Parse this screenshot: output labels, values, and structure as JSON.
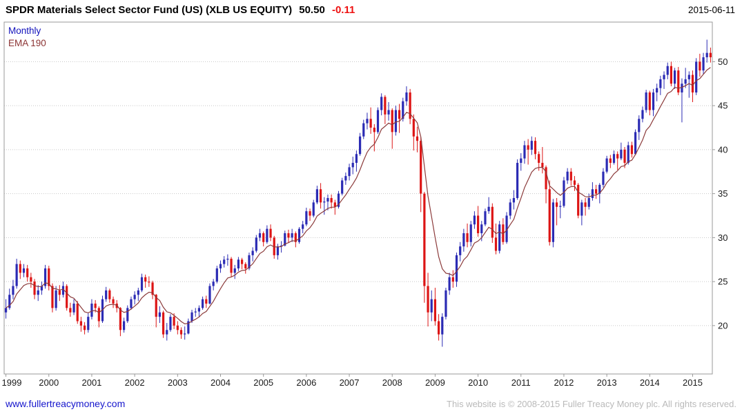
{
  "header": {
    "title": "SPDR Materials Select Sector Fund (US) (XLB US EQUITY)",
    "price": "50.50",
    "change": "-0.11",
    "date": "2015-06-11"
  },
  "legend": {
    "timeframe": "Monthly",
    "ema": "EMA 190"
  },
  "footer": {
    "link": "www.fullertreacymoney.com",
    "copyright": "This website is © 2008-2015 Fuller Treacy Money plc. All rights reserved."
  },
  "chart_data": {
    "type": "candlestick",
    "title": "SPDR Materials Select Sector Fund (US) (XLB US EQUITY)",
    "symbol": "XLB",
    "timeframe": "Monthly",
    "last_price": 50.5,
    "change": -0.11,
    "ema_period_days": 190,
    "y_ticks": [
      20,
      25,
      30,
      35,
      40,
      45,
      50
    ],
    "ylim": [
      14.5,
      54.5
    ],
    "x_year_labels": [
      "1999",
      "2000",
      "2001",
      "2002",
      "2003",
      "2004",
      "2005",
      "2006",
      "2007",
      "2008",
      "2009",
      "2010",
      "2011",
      "2012",
      "2013",
      "2014",
      "2015"
    ],
    "legend_position": "top-left",
    "grid": "horizontal-dotted",
    "colors": {
      "up": "#2b2bb4",
      "down": "#dd1515",
      "ema": "#8b3a3a",
      "grid": "#c6c6c6",
      "border": "#9a9a9a",
      "axis_text": "#1a1a1a"
    },
    "ohlc": [
      [
        "1999-01",
        21.5,
        23.0,
        20.8,
        22.0
      ],
      [
        "1999-02",
        22.0,
        24.2,
        21.8,
        23.5
      ],
      [
        "1999-03",
        23.5,
        25.2,
        23.0,
        24.5
      ],
      [
        "1999-04",
        24.5,
        27.6,
        24.2,
        27.0
      ],
      [
        "1999-05",
        27.0,
        27.4,
        25.3,
        26.0
      ],
      [
        "1999-06",
        26.0,
        27.0,
        25.5,
        26.5
      ],
      [
        "1999-07",
        26.5,
        26.9,
        25.0,
        25.5
      ],
      [
        "1999-08",
        25.5,
        26.0,
        24.3,
        25.0
      ],
      [
        "1999-09",
        25.0,
        25.3,
        23.0,
        23.5
      ],
      [
        "1999-10",
        23.5,
        24.6,
        22.8,
        24.0
      ],
      [
        "1999-11",
        24.0,
        25.0,
        23.5,
        24.5
      ],
      [
        "1999-12",
        24.5,
        26.9,
        24.2,
        26.5
      ],
      [
        "2000-01",
        26.5,
        26.8,
        24.0,
        24.5
      ],
      [
        "2000-02",
        24.5,
        24.8,
        21.5,
        22.0
      ],
      [
        "2000-03",
        22.0,
        24.5,
        21.7,
        24.0
      ],
      [
        "2000-04",
        24.0,
        24.6,
        22.8,
        23.5
      ],
      [
        "2000-05",
        23.5,
        25.0,
        23.2,
        24.5
      ],
      [
        "2000-06",
        24.5,
        24.7,
        21.7,
        22.0
      ],
      [
        "2000-07",
        22.0,
        22.6,
        21.0,
        21.5
      ],
      [
        "2000-08",
        21.5,
        23.0,
        21.2,
        22.5
      ],
      [
        "2000-09",
        22.5,
        22.8,
        20.2,
        20.5
      ],
      [
        "2000-10",
        20.5,
        21.0,
        19.3,
        20.0
      ],
      [
        "2000-11",
        20.0,
        20.4,
        19.0,
        19.5
      ],
      [
        "2000-12",
        19.5,
        21.4,
        19.2,
        21.0
      ],
      [
        "2001-01",
        21.0,
        23.0,
        20.7,
        22.5
      ],
      [
        "2001-02",
        22.5,
        22.9,
        21.5,
        22.0
      ],
      [
        "2001-03",
        22.0,
        22.2,
        19.8,
        20.5
      ],
      [
        "2001-04",
        20.5,
        23.4,
        20.3,
        23.0
      ],
      [
        "2001-05",
        23.0,
        24.4,
        22.7,
        24.0
      ],
      [
        "2001-06",
        24.0,
        24.2,
        22.6,
        23.0
      ],
      [
        "2001-07",
        23.0,
        23.3,
        22.0,
        22.5
      ],
      [
        "2001-08",
        22.5,
        22.9,
        21.5,
        22.0
      ],
      [
        "2001-09",
        22.0,
        22.1,
        18.8,
        19.5
      ],
      [
        "2001-10",
        19.5,
        20.9,
        19.2,
        20.5
      ],
      [
        "2001-11",
        20.5,
        22.3,
        20.3,
        22.0
      ],
      [
        "2001-12",
        22.0,
        23.3,
        21.8,
        23.0
      ],
      [
        "2002-01",
        23.0,
        23.9,
        22.4,
        23.5
      ],
      [
        "2002-02",
        23.5,
        24.3,
        22.8,
        24.0
      ],
      [
        "2002-03",
        24.0,
        25.9,
        23.8,
        25.5
      ],
      [
        "2002-04",
        25.5,
        25.8,
        24.3,
        25.0
      ],
      [
        "2002-05",
        25.0,
        25.6,
        24.4,
        24.9
      ],
      [
        "2002-06",
        24.9,
        25.1,
        23.0,
        23.5
      ],
      [
        "2002-07",
        23.5,
        23.6,
        19.8,
        21.0
      ],
      [
        "2002-08",
        21.0,
        22.2,
        20.3,
        21.5
      ],
      [
        "2002-09",
        21.5,
        21.7,
        18.6,
        19.0
      ],
      [
        "2002-10",
        19.0,
        20.3,
        18.3,
        19.5
      ],
      [
        "2002-11",
        19.5,
        21.3,
        19.3,
        21.0
      ],
      [
        "2002-12",
        21.0,
        21.4,
        19.6,
        20.0
      ],
      [
        "2003-01",
        20.0,
        20.5,
        19.0,
        19.5
      ],
      [
        "2003-02",
        19.5,
        19.8,
        18.5,
        19.0
      ],
      [
        "2003-03",
        19.0,
        19.9,
        18.4,
        19.1
      ],
      [
        "2003-04",
        19.1,
        20.8,
        19.0,
        20.5
      ],
      [
        "2003-05",
        20.5,
        21.8,
        20.3,
        21.5
      ],
      [
        "2003-06",
        21.5,
        22.0,
        21.0,
        21.6
      ],
      [
        "2003-07",
        21.6,
        22.3,
        21.0,
        22.0
      ],
      [
        "2003-08",
        22.0,
        23.3,
        21.8,
        23.0
      ],
      [
        "2003-09",
        23.0,
        23.4,
        22.0,
        22.5
      ],
      [
        "2003-10",
        22.5,
        24.8,
        22.4,
        24.5
      ],
      [
        "2003-11",
        24.5,
        25.3,
        24.0,
        25.0
      ],
      [
        "2003-12",
        25.0,
        26.8,
        24.8,
        26.5
      ],
      [
        "2004-01",
        26.5,
        27.4,
        26.0,
        27.0
      ],
      [
        "2004-02",
        27.0,
        27.9,
        26.6,
        27.5
      ],
      [
        "2004-03",
        27.5,
        28.1,
        26.8,
        27.6
      ],
      [
        "2004-04",
        27.6,
        27.8,
        25.5,
        26.0
      ],
      [
        "2004-05",
        26.0,
        26.9,
        25.3,
        26.5
      ],
      [
        "2004-06",
        26.5,
        27.8,
        26.2,
        27.5
      ],
      [
        "2004-07",
        27.5,
        27.7,
        26.4,
        27.0
      ],
      [
        "2004-08",
        27.0,
        27.2,
        25.9,
        26.5
      ],
      [
        "2004-09",
        26.5,
        28.3,
        26.3,
        28.0
      ],
      [
        "2004-10",
        28.0,
        28.9,
        27.3,
        28.5
      ],
      [
        "2004-11",
        28.5,
        30.3,
        28.3,
        30.0
      ],
      [
        "2004-12",
        30.0,
        31.0,
        29.6,
        30.5
      ],
      [
        "2005-01",
        30.5,
        30.7,
        29.0,
        29.5
      ],
      [
        "2005-02",
        29.5,
        31.4,
        29.3,
        31.0
      ],
      [
        "2005-03",
        31.0,
        31.5,
        29.6,
        30.0
      ],
      [
        "2005-04",
        30.0,
        30.2,
        27.6,
        28.0
      ],
      [
        "2005-05",
        28.0,
        29.3,
        27.5,
        29.0
      ],
      [
        "2005-06",
        29.0,
        29.6,
        28.3,
        29.1
      ],
      [
        "2005-07",
        29.1,
        30.8,
        29.0,
        30.5
      ],
      [
        "2005-08",
        30.5,
        30.9,
        29.4,
        30.0
      ],
      [
        "2005-09",
        30.0,
        31.0,
        29.5,
        30.5
      ],
      [
        "2005-10",
        30.5,
        30.7,
        28.9,
        29.5
      ],
      [
        "2005-11",
        29.5,
        31.2,
        29.3,
        31.0
      ],
      [
        "2005-12",
        31.0,
        31.9,
        30.5,
        31.5
      ],
      [
        "2006-01",
        31.5,
        33.4,
        31.3,
        33.0
      ],
      [
        "2006-02",
        33.0,
        33.3,
        31.9,
        32.5
      ],
      [
        "2006-03",
        32.5,
        34.3,
        32.3,
        34.0
      ],
      [
        "2006-04",
        34.0,
        35.9,
        33.8,
        35.5
      ],
      [
        "2006-05",
        35.5,
        36.2,
        33.3,
        34.0
      ],
      [
        "2006-06",
        34.0,
        34.6,
        32.6,
        34.1
      ],
      [
        "2006-07",
        34.1,
        34.9,
        33.1,
        34.5
      ],
      [
        "2006-08",
        34.5,
        34.9,
        33.3,
        34.0
      ],
      [
        "2006-09",
        34.0,
        34.3,
        32.6,
        33.5
      ],
      [
        "2006-10",
        33.5,
        35.3,
        33.3,
        35.0
      ],
      [
        "2006-11",
        35.0,
        36.8,
        34.8,
        36.5
      ],
      [
        "2006-12",
        36.5,
        37.4,
        36.0,
        37.0
      ],
      [
        "2007-01",
        37.0,
        38.4,
        36.5,
        38.0
      ],
      [
        "2007-02",
        38.0,
        39.2,
        37.2,
        38.5
      ],
      [
        "2007-03",
        38.5,
        39.9,
        37.5,
        39.5
      ],
      [
        "2007-04",
        39.5,
        41.9,
        39.3,
        41.5
      ],
      [
        "2007-05",
        41.5,
        43.4,
        41.2,
        43.0
      ],
      [
        "2007-06",
        43.0,
        44.2,
        42.3,
        43.5
      ],
      [
        "2007-07",
        43.5,
        44.8,
        41.8,
        42.5
      ],
      [
        "2007-08",
        42.5,
        42.9,
        39.8,
        42.0
      ],
      [
        "2007-09",
        42.0,
        44.8,
        41.8,
        44.5
      ],
      [
        "2007-10",
        44.5,
        46.4,
        43.9,
        46.0
      ],
      [
        "2007-11",
        46.0,
        46.2,
        42.9,
        44.0
      ],
      [
        "2007-12",
        44.0,
        45.4,
        43.3,
        44.5
      ],
      [
        "2008-01",
        44.5,
        44.7,
        40.1,
        42.0
      ],
      [
        "2008-02",
        42.0,
        45.0,
        41.6,
        44.5
      ],
      [
        "2008-03",
        44.5,
        45.2,
        41.9,
        43.5
      ],
      [
        "2008-04",
        43.5,
        45.9,
        43.2,
        45.5
      ],
      [
        "2008-05",
        45.5,
        47.2,
        45.0,
        46.5
      ],
      [
        "2008-06",
        46.5,
        46.9,
        42.9,
        43.5
      ],
      [
        "2008-07",
        43.5,
        44.0,
        39.9,
        41.5
      ],
      [
        "2008-08",
        41.5,
        42.6,
        39.7,
        41.0
      ],
      [
        "2008-09",
        41.0,
        41.4,
        32.9,
        35.0
      ],
      [
        "2008-10",
        35.0,
        35.2,
        22.6,
        24.5
      ],
      [
        "2008-11",
        24.5,
        26.0,
        19.9,
        21.5
      ],
      [
        "2008-12",
        21.5,
        24.0,
        20.5,
        23.0
      ],
      [
        "2009-01",
        23.0,
        24.3,
        20.0,
        20.5
      ],
      [
        "2009-02",
        20.5,
        21.3,
        18.3,
        19.0
      ],
      [
        "2009-03",
        19.0,
        21.4,
        17.6,
        21.0
      ],
      [
        "2009-04",
        21.0,
        24.3,
        20.7,
        24.0
      ],
      [
        "2009-05",
        24.0,
        26.0,
        23.5,
        25.5
      ],
      [
        "2009-06",
        25.5,
        26.3,
        24.3,
        25.0
      ],
      [
        "2009-07",
        25.0,
        28.3,
        24.4,
        28.0
      ],
      [
        "2009-08",
        28.0,
        29.5,
        27.3,
        29.0
      ],
      [
        "2009-09",
        29.0,
        31.0,
        28.4,
        30.5
      ],
      [
        "2009-10",
        30.5,
        31.6,
        28.9,
        29.5
      ],
      [
        "2009-11",
        29.5,
        31.9,
        29.0,
        31.5
      ],
      [
        "2009-12",
        31.5,
        33.0,
        31.0,
        32.5
      ],
      [
        "2010-01",
        32.5,
        33.6,
        30.1,
        30.5
      ],
      [
        "2010-02",
        30.5,
        31.9,
        29.6,
        31.5
      ],
      [
        "2010-03",
        31.5,
        33.3,
        31.3,
        33.0
      ],
      [
        "2010-04",
        33.0,
        34.6,
        32.7,
        33.5
      ],
      [
        "2010-05",
        33.5,
        33.9,
        29.4,
        30.0
      ],
      [
        "2010-06",
        30.0,
        31.6,
        28.1,
        28.5
      ],
      [
        "2010-07",
        28.5,
        31.9,
        28.2,
        31.5
      ],
      [
        "2010-08",
        31.5,
        32.2,
        29.2,
        29.5
      ],
      [
        "2010-09",
        29.5,
        32.9,
        29.3,
        32.5
      ],
      [
        "2010-10",
        32.5,
        34.4,
        32.1,
        34.0
      ],
      [
        "2010-11",
        34.0,
        35.4,
        33.2,
        34.5
      ],
      [
        "2010-12",
        34.5,
        38.9,
        34.3,
        38.5
      ],
      [
        "2011-01",
        38.5,
        39.6,
        37.6,
        39.0
      ],
      [
        "2011-02",
        39.0,
        41.0,
        38.4,
        40.5
      ],
      [
        "2011-03",
        40.5,
        41.2,
        38.3,
        40.0
      ],
      [
        "2011-04",
        40.0,
        41.5,
        39.4,
        41.0
      ],
      [
        "2011-05",
        41.0,
        41.4,
        38.9,
        39.5
      ],
      [
        "2011-06",
        39.5,
        39.8,
        37.6,
        38.5
      ],
      [
        "2011-07",
        38.5,
        40.3,
        37.3,
        38.0
      ],
      [
        "2011-08",
        38.0,
        38.2,
        33.9,
        35.5
      ],
      [
        "2011-09",
        35.5,
        36.5,
        29.1,
        29.5
      ],
      [
        "2011-10",
        29.5,
        34.4,
        28.9,
        34.0
      ],
      [
        "2011-11",
        34.0,
        34.5,
        31.4,
        33.5
      ],
      [
        "2011-12",
        33.5,
        34.2,
        32.2,
        33.6
      ],
      [
        "2012-01",
        33.6,
        36.9,
        33.4,
        36.5
      ],
      [
        "2012-02",
        36.5,
        37.9,
        36.1,
        37.5
      ],
      [
        "2012-03",
        37.5,
        37.9,
        35.9,
        36.5
      ],
      [
        "2012-04",
        36.5,
        37.0,
        35.3,
        36.0
      ],
      [
        "2012-05",
        36.0,
        36.2,
        32.2,
        32.5
      ],
      [
        "2012-06",
        32.5,
        34.3,
        31.4,
        34.0
      ],
      [
        "2012-07",
        34.0,
        34.5,
        32.5,
        33.5
      ],
      [
        "2012-08",
        33.5,
        35.0,
        33.2,
        34.5
      ],
      [
        "2012-09",
        34.5,
        36.3,
        34.2,
        35.5
      ],
      [
        "2012-10",
        35.5,
        36.0,
        34.4,
        35.0
      ],
      [
        "2012-11",
        35.0,
        36.2,
        33.9,
        36.0
      ],
      [
        "2012-12",
        36.0,
        37.9,
        35.7,
        37.5
      ],
      [
        "2013-01",
        37.5,
        39.3,
        37.3,
        39.0
      ],
      [
        "2013-02",
        39.0,
        39.4,
        37.9,
        38.5
      ],
      [
        "2013-03",
        38.5,
        39.9,
        38.3,
        39.5
      ],
      [
        "2013-04",
        39.5,
        39.8,
        37.7,
        39.0
      ],
      [
        "2013-05",
        39.0,
        40.8,
        38.8,
        40.0
      ],
      [
        "2013-06",
        40.0,
        40.3,
        37.9,
        38.5
      ],
      [
        "2013-07",
        38.5,
        40.9,
        38.3,
        40.5
      ],
      [
        "2013-08",
        40.5,
        40.9,
        39.1,
        39.5
      ],
      [
        "2013-09",
        39.5,
        42.3,
        39.4,
        42.0
      ],
      [
        "2013-10",
        42.0,
        43.9,
        41.1,
        43.5
      ],
      [
        "2013-11",
        43.5,
        44.9,
        43.1,
        44.5
      ],
      [
        "2013-12",
        44.5,
        46.8,
        44.2,
        46.5
      ],
      [
        "2014-01",
        46.5,
        46.7,
        43.9,
        44.5
      ],
      [
        "2014-02",
        44.5,
        46.9,
        43.8,
        46.5
      ],
      [
        "2014-03",
        46.5,
        47.5,
        45.5,
        47.0
      ],
      [
        "2014-04",
        47.0,
        48.4,
        46.2,
        48.0
      ],
      [
        "2014-05",
        48.0,
        48.9,
        46.9,
        48.5
      ],
      [
        "2014-06",
        48.5,
        49.9,
        48.0,
        49.5
      ],
      [
        "2014-07",
        49.5,
        50.0,
        47.2,
        47.5
      ],
      [
        "2014-08",
        47.5,
        49.3,
        46.9,
        49.0
      ],
      [
        "2014-09",
        49.0,
        49.4,
        46.2,
        46.5
      ],
      [
        "2014-10",
        46.5,
        48.1,
        43.1,
        47.5
      ],
      [
        "2014-11",
        47.5,
        49.3,
        47.0,
        48.0
      ],
      [
        "2014-12",
        48.0,
        48.9,
        45.9,
        48.5
      ],
      [
        "2015-01",
        48.5,
        49.0,
        45.4,
        46.5
      ],
      [
        "2015-02",
        46.5,
        50.4,
        46.2,
        50.0
      ],
      [
        "2015-03",
        50.0,
        50.9,
        48.3,
        49.0
      ],
      [
        "2015-04",
        49.0,
        51.0,
        48.6,
        50.5
      ],
      [
        "2015-05",
        50.5,
        52.5,
        49.9,
        51.0
      ],
      [
        "2015-06",
        51.0,
        51.6,
        49.9,
        50.5
      ]
    ]
  }
}
